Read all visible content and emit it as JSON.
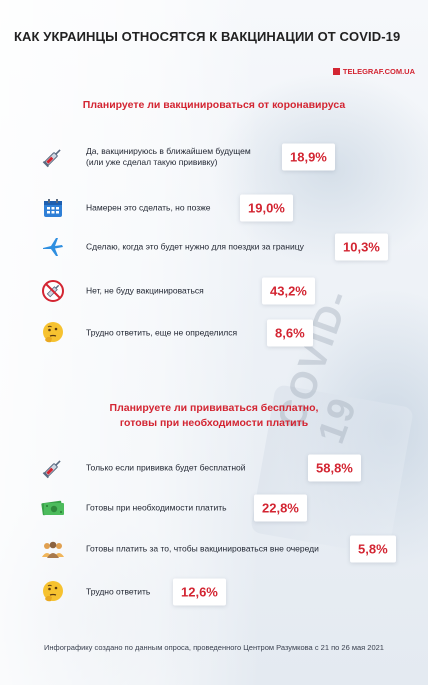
{
  "title": "КАК УКРАИНЦЫ ОТНОСЯТСЯ К ВАКЦИНАЦИИ ОТ COVID-19",
  "source": "TELEGRAF.COM.UA",
  "background_text": "COVID-19",
  "colors": {
    "accent": "#d32532",
    "text": "#1f2430",
    "badge_bg": "#ffffff"
  },
  "chart_data": [
    {
      "type": "bar",
      "title": "Планируете ли вакцинироваться от коронавируса",
      "categories": [
        "Да, вакцинируюсь в ближайшем будущем (или уже сделал такую прививку)",
        "Намерен это сделать, но позже",
        "Сделаю, когда это будет нужно для поездки за границу",
        "Нет, не буду вакцинироваться",
        "Трудно ответить, еще не определился"
      ],
      "values": [
        18.9,
        19.0,
        10.3,
        43.2,
        8.6
      ],
      "value_labels": [
        "18,9%",
        "19,0%",
        "10,3%",
        "43,2%",
        "8,6%"
      ],
      "icons": [
        "syringe-icon",
        "calendar-icon",
        "airplane-icon",
        "no-vaccine-icon",
        "thinking-face-icon"
      ]
    },
    {
      "type": "bar",
      "title": "Планируете ли прививаться бесплатно, готовы при необходимости платить",
      "categories": [
        "Только если прививка будет бесплатной",
        "Готовы при необходимости платить",
        "Готовы платить за то, чтобы вакцинироваться вне очереди",
        "Трудно ответить"
      ],
      "values": [
        58.8,
        22.8,
        5.8,
        12.6
      ],
      "value_labels": [
        "58,8%",
        "22,8%",
        "5,8%",
        "12,6%"
      ],
      "icons": [
        "syringe-icon",
        "money-icon",
        "people-icon",
        "thinking-face-icon"
      ]
    }
  ],
  "q1_lines": [
    "Планируете ли вакцинироваться от коронавируса"
  ],
  "q1_labels": [
    [
      "Да, вакцинируюсь в ближайшем будущем",
      "(или уже сделал такую прививку)"
    ],
    [
      "Намерен это сделать, но позже"
    ],
    [
      "Сделаю, когда это будет нужно для поездки за границу"
    ],
    [
      "Нет, не буду вакцинироваться"
    ],
    [
      "Трудно ответить, еще не определился"
    ]
  ],
  "q2_lines": [
    "Планируете ли прививаться бесплатно,",
    "готовы при необходимости платить"
  ],
  "q2_labels": [
    [
      "Только если прививка будет бесплатной"
    ],
    [
      "Готовы при необходимости платить"
    ],
    [
      "Готовы платить за то, чтобы вакцинироваться вне очереди"
    ],
    [
      "Трудно ответить"
    ]
  ],
  "footer": "Инфографику создано по данным опроса, проведенного Центром Разумкова с 21 по 26 мая 2021"
}
